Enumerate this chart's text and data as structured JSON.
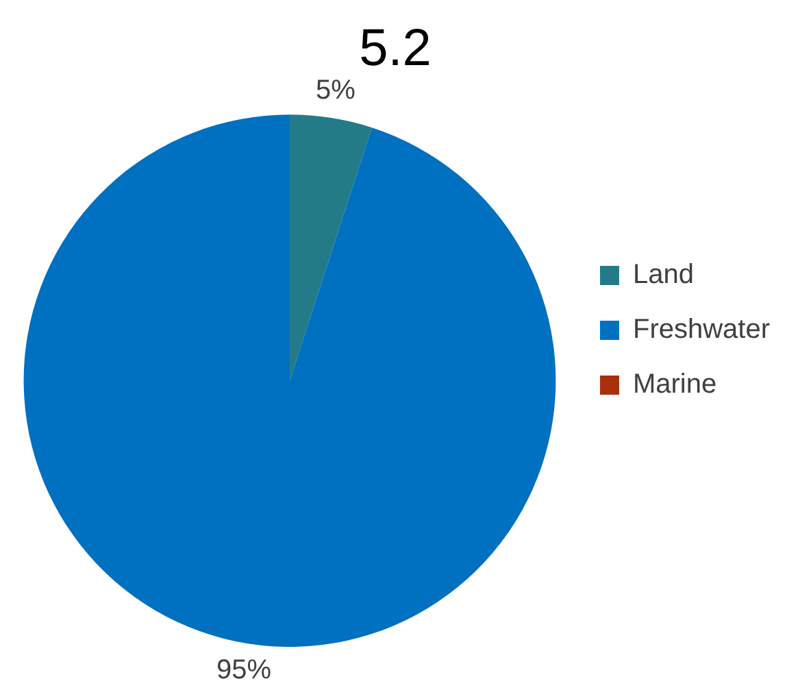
{
  "chart_data": {
    "type": "pie",
    "title": "5.2",
    "categories": [
      "Land",
      "Freshwater",
      "Marine"
    ],
    "values": [
      5,
      95,
      0
    ],
    "colors": [
      "#237b87",
      "#0070c0",
      "#a8300c"
    ],
    "value_labels": [
      "5%",
      "95%",
      null
    ],
    "legend": "right"
  }
}
